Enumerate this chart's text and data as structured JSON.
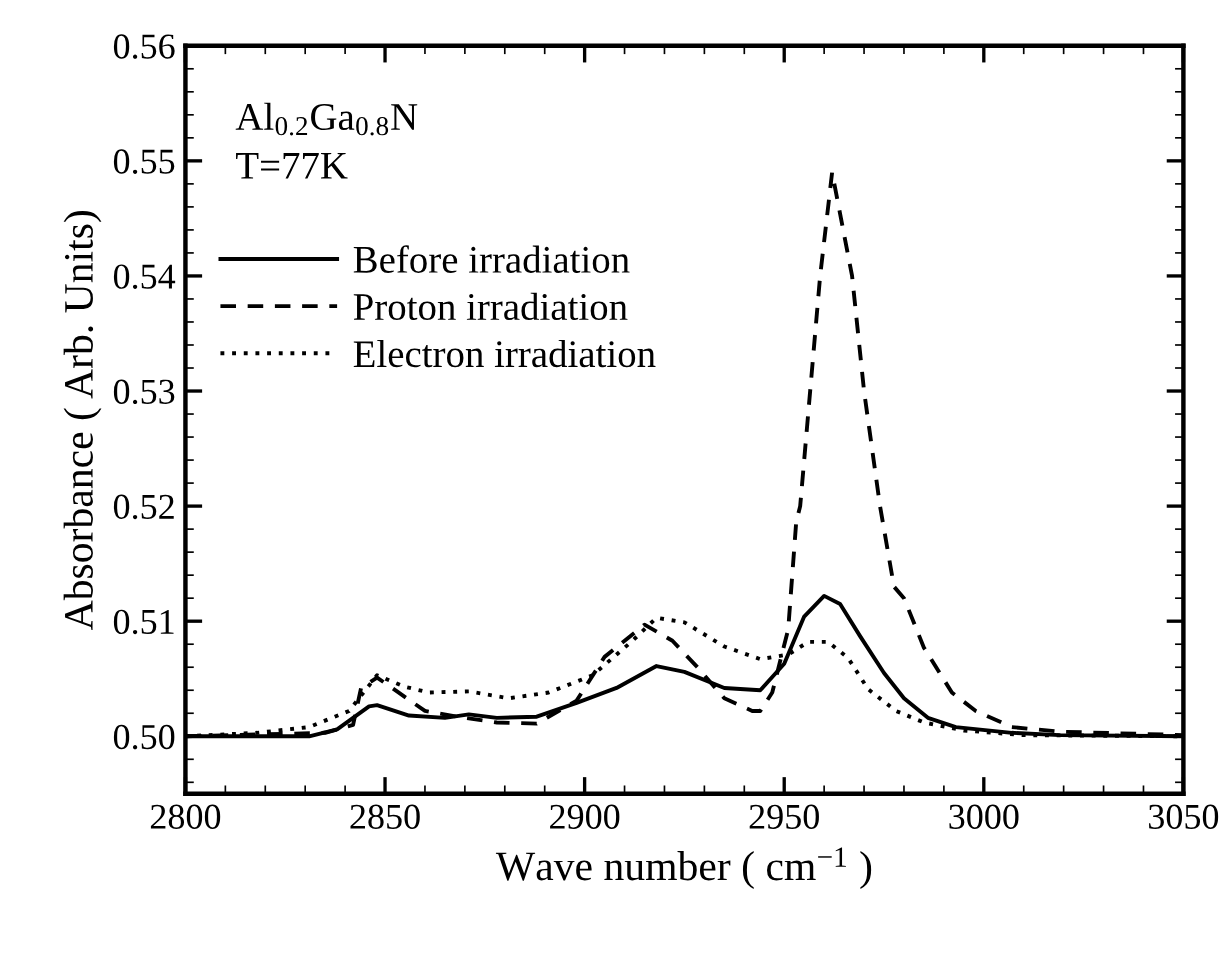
{
  "chart_data": {
    "type": "line",
    "xlabel": "Wave number ( cm$^{−1}$ )",
    "ylabel": "Absorbance ( Arb. Units)",
    "annotations": [
      "Al$_{0.2}$Ga$_{0.8}$N",
      "T=77K"
    ],
    "xlim": [
      2800,
      3050
    ],
    "xticks": [
      2800,
      2850,
      2900,
      2950,
      3000,
      3050
    ],
    "ylim": [
      0.495,
      0.56
    ],
    "yticks": [
      {
        "value": 0.5,
        "label": "0.50"
      },
      {
        "value": 0.51,
        "label": "0.51"
      },
      {
        "value": 0.52,
        "label": "0.52"
      },
      {
        "value": 0.53,
        "label": "0.53"
      },
      {
        "value": 0.54,
        "label": "0.54"
      },
      {
        "value": 0.55,
        "label": "0.55"
      },
      {
        "value": 0.56,
        "label": "0.56"
      }
    ],
    "legend": "top left",
    "grid": false,
    "series": [
      {
        "name": "Before irradiation",
        "color": "#000000",
        "line_style": "solid",
        "x": [
          2800,
          2831,
          2838,
          2846,
          2848,
          2856,
          2865,
          2871,
          2878,
          2888,
          2898,
          2908,
          2918,
          2925,
          2935,
          2944,
          2950,
          2955,
          2960,
          2964,
          2969,
          2975,
          2980,
          2986,
          2993,
          3007,
          3019,
          3050
        ],
        "values": [
          0.5,
          0.5,
          0.5006,
          0.5026,
          0.5027,
          0.5018,
          0.5016,
          0.5019,
          0.5016,
          0.5017,
          0.5029,
          0.5042,
          0.5061,
          0.5056,
          0.5042,
          0.504,
          0.5063,
          0.5104,
          0.5122,
          0.5115,
          0.5087,
          0.5055,
          0.5033,
          0.5016,
          0.5008,
          0.5003,
          0.5001,
          0.5
        ]
      },
      {
        "name": "Proton irradiation",
        "color": "#000000",
        "line_style": "dashed",
        "x": [
          2800,
          2835,
          2842,
          2844,
          2848,
          2853,
          2860,
          2868,
          2878,
          2888,
          2898,
          2905,
          2915,
          2922,
          2928,
          2935,
          2942,
          2944,
          2947,
          2951,
          2953,
          2954,
          2956.5,
          2959,
          2962,
          2967,
          2970,
          2974,
          2977.5,
          2980,
          2985,
          2992,
          2998,
          3007,
          3019,
          3050
        ],
        "values": [
          0.5,
          0.5003,
          0.501,
          0.5042,
          0.5051,
          0.5039,
          0.5022,
          0.5017,
          0.5012,
          0.5011,
          0.5031,
          0.5069,
          0.5097,
          0.5083,
          0.5061,
          0.5033,
          0.5022,
          0.5022,
          0.5038,
          0.5093,
          0.5186,
          0.52,
          0.53,
          0.54,
          0.549,
          0.54,
          0.53,
          0.52,
          0.513,
          0.512,
          0.5077,
          0.5038,
          0.5022,
          0.5008,
          0.5004,
          0.5001
        ]
      },
      {
        "name": "Electron irradiation",
        "color": "#000000",
        "line_style": "dotted",
        "x": [
          2800,
          2818,
          2831,
          2841,
          2848,
          2855,
          2861,
          2871,
          2881,
          2891,
          2902,
          2912,
          2918,
          2925,
          2935,
          2944,
          2951,
          2956,
          2961,
          2966,
          2971,
          2978,
          2985,
          2995,
          3010,
          3050
        ],
        "values": [
          0.5,
          0.5003,
          0.5008,
          0.5022,
          0.5053,
          0.5043,
          0.5038,
          0.5039,
          0.5033,
          0.5038,
          0.5053,
          0.5083,
          0.5103,
          0.5099,
          0.5078,
          0.5067,
          0.5071,
          0.5082,
          0.5082,
          0.5068,
          0.5041,
          0.5022,
          0.5012,
          0.5005,
          0.5001,
          0.5
        ]
      }
    ]
  }
}
